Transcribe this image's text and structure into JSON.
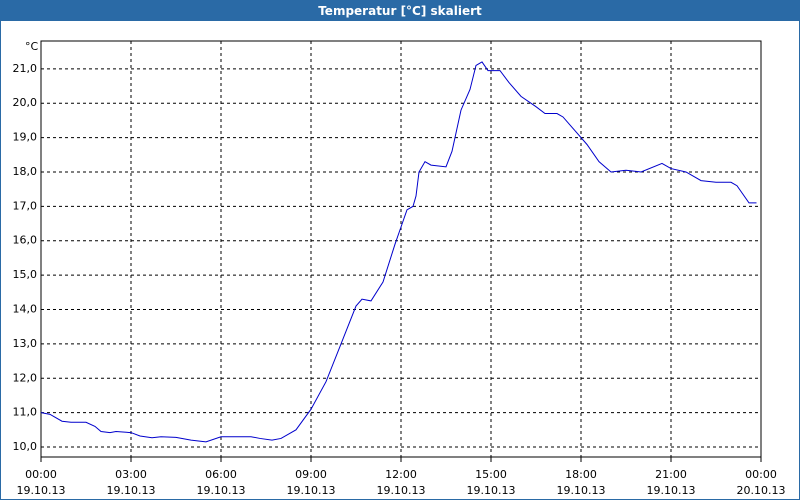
{
  "chart_data": {
    "type": "line",
    "title": "Temperatur [°C] skaliert",
    "y_unit": "°C",
    "x": [
      0,
      0.3,
      0.7,
      1.0,
      1.5,
      1.8,
      2.0,
      2.3,
      2.5,
      3.0,
      3.3,
      3.7,
      4.0,
      4.5,
      5.0,
      5.5,
      6.0,
      6.5,
      7.0,
      7.3,
      7.7,
      8.0,
      8.5,
      9.0,
      9.5,
      10.0,
      10.5,
      10.7,
      11.0,
      11.4,
      11.8,
      12.0,
      12.2,
      12.4,
      12.5,
      12.6,
      12.8,
      13.0,
      13.5,
      13.7,
      14.0,
      14.3,
      14.5,
      14.7,
      14.9,
      15.3,
      15.6,
      16.0,
      16.5,
      16.8,
      17.2,
      17.4,
      17.8,
      18.2,
      18.6,
      19.0,
      19.5,
      20.0,
      20.7,
      21.0,
      21.5,
      22.0,
      22.5,
      23.0,
      23.2,
      23.6,
      23.85
    ],
    "series": [
      {
        "name": "Temperatur",
        "color": "#0000cc",
        "values": [
          11.0,
          10.95,
          10.75,
          10.72,
          10.72,
          10.6,
          10.45,
          10.42,
          10.45,
          10.42,
          10.32,
          10.27,
          10.3,
          10.28,
          10.2,
          10.15,
          10.3,
          10.3,
          10.3,
          10.25,
          10.2,
          10.25,
          10.5,
          11.1,
          11.9,
          13.0,
          14.1,
          14.3,
          14.25,
          14.8,
          15.9,
          16.4,
          16.9,
          17.0,
          17.3,
          18.0,
          18.3,
          18.2,
          18.15,
          18.6,
          19.8,
          20.4,
          21.1,
          21.2,
          20.95,
          20.95,
          20.6,
          20.2,
          19.9,
          19.7,
          19.7,
          19.6,
          19.2,
          18.8,
          18.3,
          18.0,
          18.05,
          18.0,
          18.25,
          18.1,
          18.0,
          17.75,
          17.7,
          17.7,
          17.6,
          17.1,
          17.1
        ]
      }
    ],
    "xlim": [
      0,
      24
    ],
    "ylim": [
      9.71,
      21.81
    ],
    "xticks": [
      {
        "value": 0,
        "label": "00:00"
      },
      {
        "value": 3,
        "label": "03:00"
      },
      {
        "value": 6,
        "label": "06:00"
      },
      {
        "value": 9,
        "label": "09:00"
      },
      {
        "value": 12,
        "label": "12:00"
      },
      {
        "value": 15,
        "label": "15:00"
      },
      {
        "value": 18,
        "label": "18:00"
      },
      {
        "value": 21,
        "label": "21:00"
      },
      {
        "value": 24,
        "label": "00:00"
      }
    ],
    "xtick_dates": [
      "19.10.13",
      "19.10.13",
      "19.10.13",
      "19.10.13",
      "19.10.13",
      "19.10.13",
      "19.10.13",
      "19.10.13",
      "20.10.13"
    ],
    "yticks": [
      {
        "value": 10,
        "label": "10,0"
      },
      {
        "value": 11,
        "label": "11,0"
      },
      {
        "value": 12,
        "label": "12,0"
      },
      {
        "value": 13,
        "label": "13,0"
      },
      {
        "value": 14,
        "label": "14,0"
      },
      {
        "value": 15,
        "label": "15,0"
      },
      {
        "value": 16,
        "label": "16,0"
      },
      {
        "value": 17,
        "label": "17,0"
      },
      {
        "value": 18,
        "label": "18,0"
      },
      {
        "value": 19,
        "label": "19,0"
      },
      {
        "value": 20,
        "label": "20,0"
      },
      {
        "value": 21,
        "label": "21,0"
      }
    ],
    "grid": true
  }
}
